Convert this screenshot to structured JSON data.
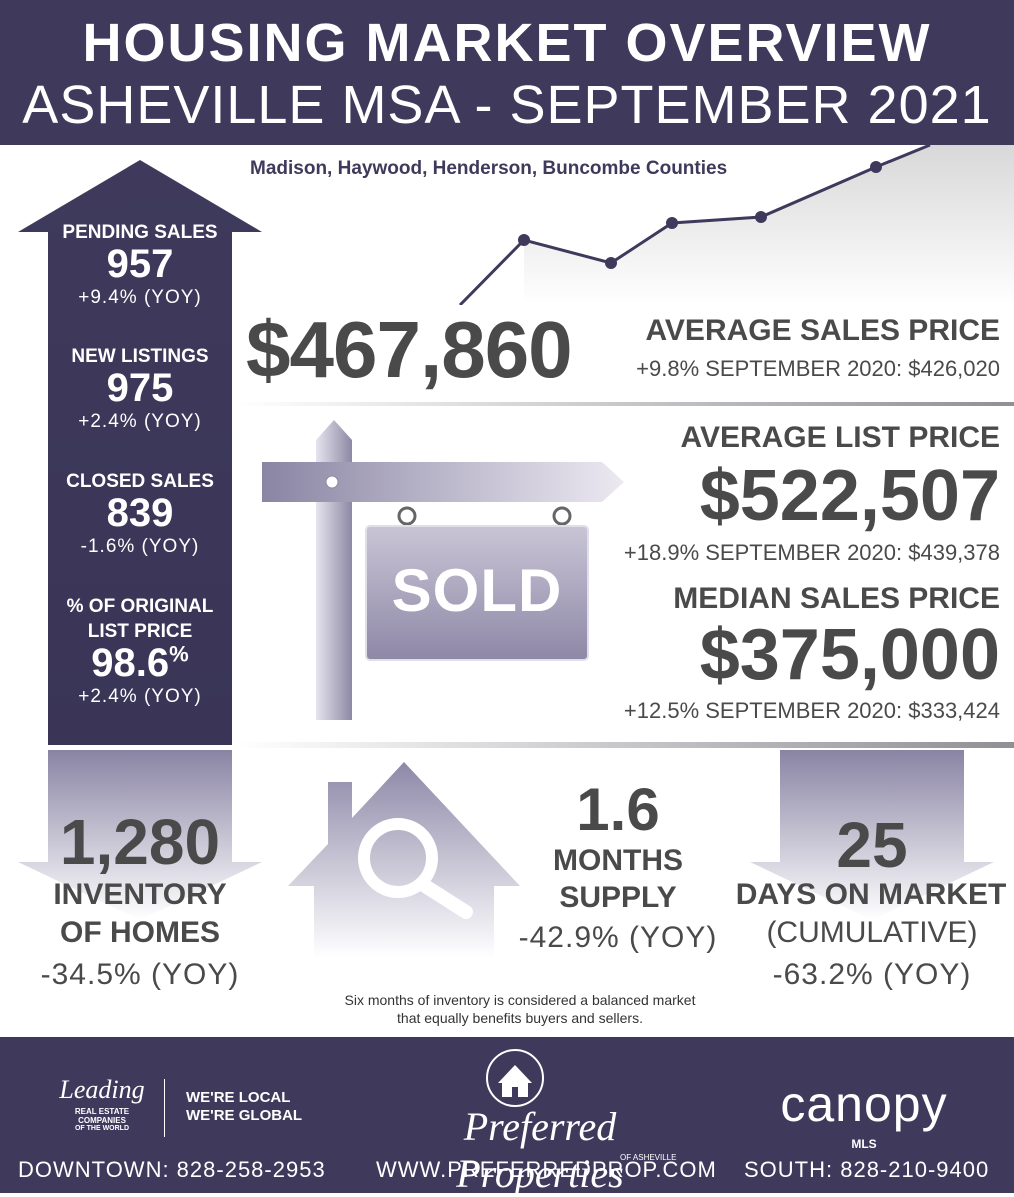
{
  "header": {
    "title_line1": "HOUSING MARKET OVERVIEW",
    "title_line2": "ASHEVILLE MSA - SEPTEMBER 2021",
    "subtitle": "Madison, Haywood, Henderson, Buncombe Counties"
  },
  "arrow_stats": [
    {
      "label": "PENDING SALES",
      "value": "957",
      "change": "+9.4% (YOY)"
    },
    {
      "label": "NEW LISTINGS",
      "value": "975",
      "change": "+2.4% (YOY)"
    },
    {
      "label": "CLOSED SALES",
      "value": "839",
      "change": "-1.6% (YOY)"
    },
    {
      "label_line1": "% OF ORIGINAL",
      "label_line2": "LIST PRICE",
      "value": "98.6",
      "value_suffix": "%",
      "change": "+2.4% (YOY)"
    }
  ],
  "average_sales": {
    "value": "$467,860",
    "label": "AVERAGE SALES PRICE",
    "comparison": "+9.8% SEPTEMBER 2020: $426,020"
  },
  "average_list": {
    "label": "AVERAGE LIST PRICE",
    "value": "$522,507",
    "comparison": "+18.9% SEPTEMBER 2020: $439,378"
  },
  "median_sales": {
    "label": "MEDIAN SALES PRICE",
    "value": "$375,000",
    "comparison": "+12.5% SEPTEMBER 2020: $333,424"
  },
  "sign": {
    "text": "SOLD"
  },
  "inventory": {
    "value": "1,280",
    "label_line1": "INVENTORY",
    "label_line2": "OF HOMES",
    "change": "-34.5% (YOY)"
  },
  "months_supply": {
    "value": "1.6",
    "label_line1": "MONTHS",
    "label_line2": "SUPPLY",
    "change": "-42.9% (YOY)",
    "note_line1": "Six months of inventory is considered a balanced market",
    "note_line2": "that equally benefits buyers and sellers."
  },
  "days_on_market": {
    "value": "25",
    "label": "DAYS ON MARKET",
    "sublabel": "(CUMULATIVE)",
    "change": "-63.2% (YOY)"
  },
  "footer": {
    "leading_word": "Leading",
    "leading_sub1": "REAL ESTATE",
    "leading_sub2": "COMPANIES",
    "leading_sub3": "OF THE WORLD",
    "tagline1": "WE'RE LOCAL",
    "tagline2": "WE'RE GLOBAL",
    "brand": "Preferred Properties",
    "brand_sub": "OF ASHEVILLE",
    "canopy": "canopy",
    "canopy_sub": "MLS",
    "downtown": "DOWNTOWN: 828-258-2953",
    "website": "WWW.PREFERREDPROP.COM",
    "south": "SOUTH: 828-210-9400"
  },
  "colors": {
    "purple": "#3f3a5c",
    "dark_text": "#4a4a4a",
    "white": "#ffffff"
  }
}
